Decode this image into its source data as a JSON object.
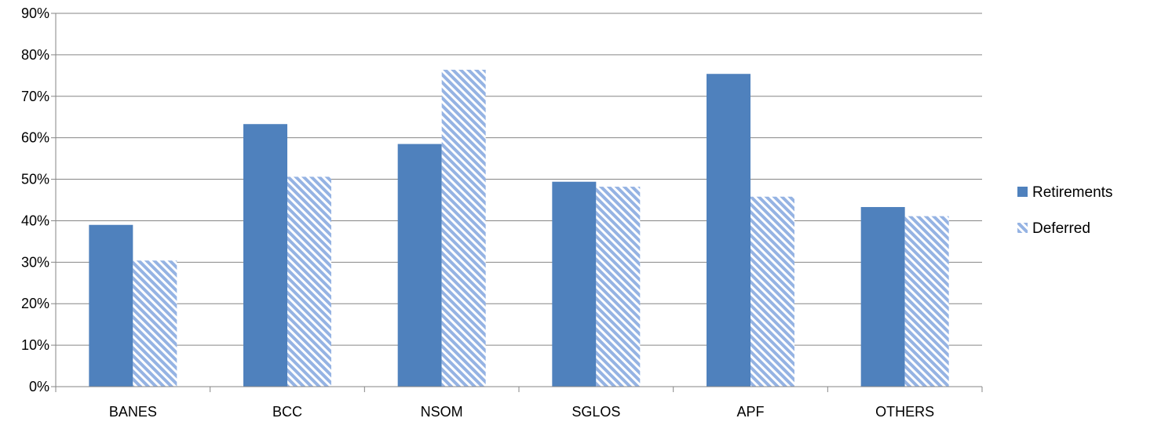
{
  "chart_data": {
    "type": "bar",
    "categories": [
      "BANES",
      "BCC",
      "NSOM",
      "SGLOS",
      "APF",
      "OTHERS"
    ],
    "series": [
      {
        "name": "Retirements",
        "values": [
          39,
          63.3,
          58.5,
          49.4,
          75.4,
          43.3
        ],
        "color": "#4F81BD",
        "fill": "solid"
      },
      {
        "name": "Deferred",
        "values": [
          30.4,
          50.6,
          76.4,
          48.2,
          45.8,
          41.1
        ],
        "color": "#95B3E3",
        "fill": "diagonal-hatch"
      }
    ],
    "ylim": [
      0,
      90
    ],
    "y_ticks": [
      0,
      10,
      20,
      30,
      40,
      50,
      60,
      70,
      80,
      90
    ],
    "y_tick_suffix": "%",
    "grid": true,
    "legend_position": "right"
  }
}
